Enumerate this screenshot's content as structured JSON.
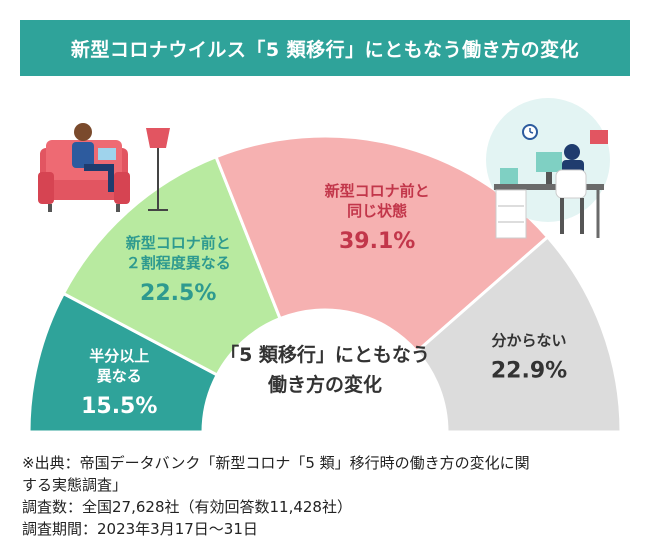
{
  "title": "新型コロナウイルス「5 類移行」にともなう働き方の変化",
  "center_label": [
    "「5 類移行」にともなう",
    "働き方の変化"
  ],
  "chart_data": {
    "type": "pie",
    "subtype": "semicircle-donut",
    "title": "新型コロナウイルス「5 類移行」にともなう働き方の変化",
    "slices": [
      {
        "label_lines": [
          "半分以上",
          "異なる"
        ],
        "value": 15.5,
        "value_label": "15.5%",
        "color": "#2fa39a",
        "label_color": "#ffffff"
      },
      {
        "label_lines": [
          "新型コロナ前と",
          "２割程度異なる"
        ],
        "value": 22.5,
        "value_label": "22.5%",
        "color": "#b8eaa0",
        "label_color": "#2e9a8f"
      },
      {
        "label_lines": [
          "新型コロナ前と",
          "同じ状態"
        ],
        "value": 39.1,
        "value_label": "39.1%",
        "color": "#f6b1b1",
        "label_color": "#c2364a"
      },
      {
        "label_lines": [
          "分からない"
        ],
        "value": 22.9,
        "value_label": "22.9%",
        "color": "#dcdcdc",
        "label_color": "#333333"
      }
    ]
  },
  "notes": [
    "※出典：帝国データバンク「新型コロナ「5 類」移行時の働き方の変化に関",
    "する実態調査」",
    "調査数：全国27,628社（有効回答数11,428社）",
    "調査期間：2023年3月17日～31日"
  ]
}
